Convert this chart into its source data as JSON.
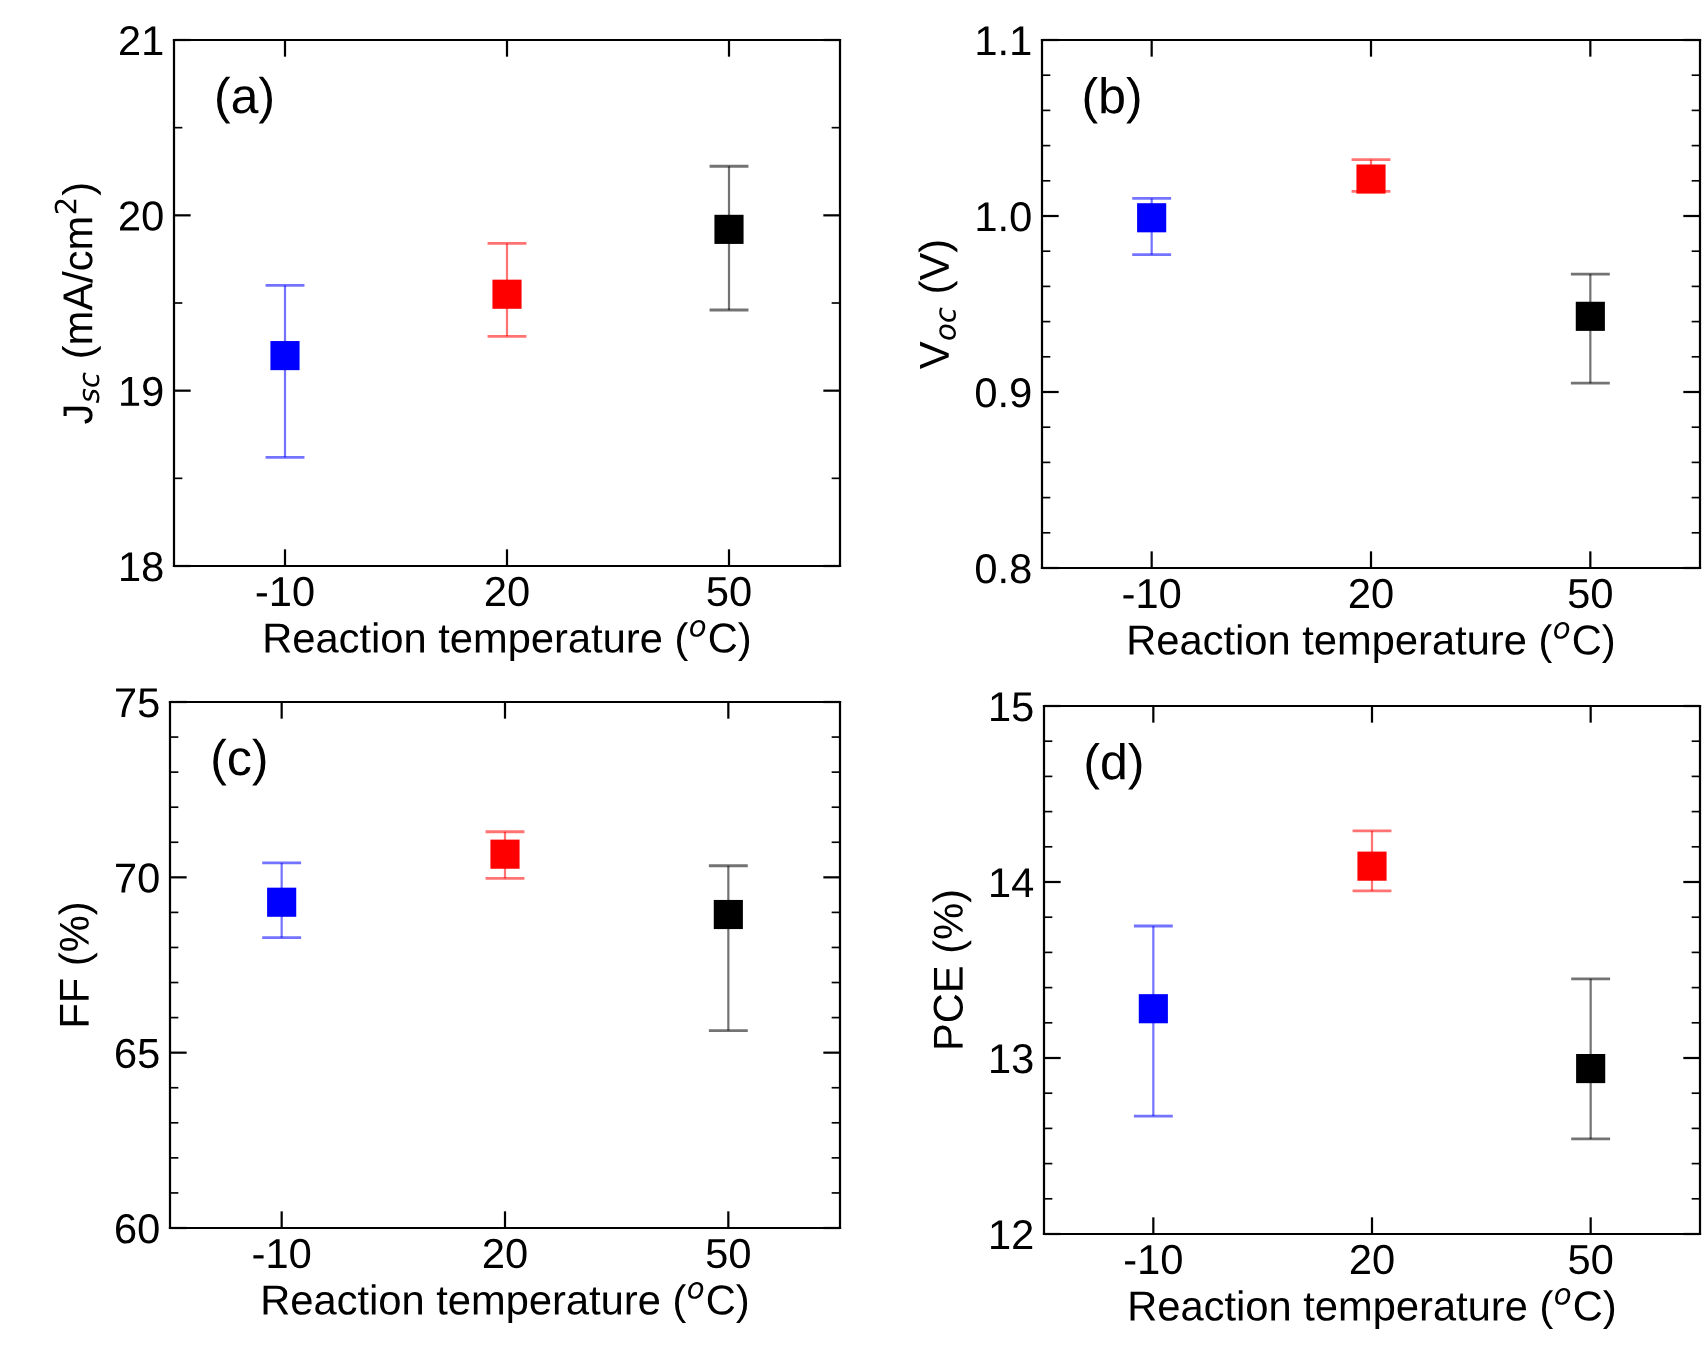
{
  "chart_data": [
    {
      "type": "scatter",
      "annotations": [
        "(a)"
      ],
      "xlabel": "Reaction temperature ($^{o}$C)",
      "ylabel": "J$_{sc}$ (mA/cm$^{2}$)",
      "categories": [
        "-10",
        "20",
        "50"
      ],
      "values": [
        19.2,
        19.55,
        19.92
      ],
      "colors": [
        "#0000ff",
        "#ff0000",
        "#000000"
      ],
      "errors": [
        [
          18.62,
          19.6
        ],
        [
          19.31,
          19.84
        ],
        [
          19.46,
          20.28
        ]
      ],
      "marker": "square",
      "ylim": [
        18,
        21
      ],
      "yticks": [
        18,
        {
          "value": 18.5,
          "label": null
        },
        19,
        {
          "value": 19.5,
          "label": null
        },
        20,
        {
          "value": 20.5,
          "label": null
        },
        21
      ]
    },
    {
      "type": "scatter",
      "annotations": [
        "(b)"
      ],
      "xlabel": "Reaction temperature ($^{o}$C)",
      "ylabel": "V$_{oc}$ (V)",
      "categories": [
        "-10",
        "20",
        "50"
      ],
      "values": [
        0.999,
        1.021,
        0.943
      ],
      "colors": [
        "#0000ff",
        "#ff0000",
        "#000000"
      ],
      "errors": [
        [
          0.978,
          1.01
        ],
        [
          1.014,
          1.032
        ],
        [
          0.905,
          0.967
        ]
      ],
      "marker": "square",
      "ylim": [
        0.8,
        1.1
      ],
      "yticks": [
        {
          "value": 0.8,
          "label": "0.8"
        },
        {
          "value": 0.82,
          "label": null
        },
        {
          "value": 0.84,
          "label": null
        },
        {
          "value": 0.86,
          "label": null
        },
        {
          "value": 0.88,
          "label": null
        },
        {
          "value": 0.9,
          "label": "0.9"
        },
        {
          "value": 0.92,
          "label": null
        },
        {
          "value": 0.94,
          "label": null
        },
        {
          "value": 0.96,
          "label": null
        },
        {
          "value": 0.98,
          "label": null
        },
        {
          "value": 1.0,
          "label": "1.0"
        },
        {
          "value": 1.02,
          "label": null
        },
        {
          "value": 1.04,
          "label": null
        },
        {
          "value": 1.06,
          "label": null
        },
        {
          "value": 1.08,
          "label": null
        },
        {
          "value": 1.1,
          "label": "1.1"
        }
      ]
    },
    {
      "type": "scatter",
      "annotations": [
        "(c)"
      ],
      "xlabel": "Reaction temperature ($^{o}$C)",
      "ylabel": "FF (%)",
      "categories": [
        "-10",
        "20",
        "50"
      ],
      "values": [
        69.29,
        70.66,
        68.94
      ],
      "colors": [
        "#0000ff",
        "#ff0000",
        "#000000"
      ],
      "errors": [
        [
          68.28,
          70.41
        ],
        [
          69.97,
          71.3
        ],
        [
          65.63,
          70.33
        ]
      ],
      "marker": "square",
      "ylim": [
        60,
        75
      ],
      "yticks": [
        60,
        {
          "value": 61,
          "label": null
        },
        {
          "value": 62,
          "label": null
        },
        {
          "value": 63,
          "label": null
        },
        {
          "value": 64,
          "label": null
        },
        65,
        {
          "value": 66,
          "label": null
        },
        {
          "value": 67,
          "label": null
        },
        {
          "value": 68,
          "label": null
        },
        {
          "value": 69,
          "label": null
        },
        70,
        {
          "value": 71,
          "label": null
        },
        {
          "value": 72,
          "label": null
        },
        {
          "value": 73,
          "label": null
        },
        {
          "value": 74,
          "label": null
        },
        75
      ]
    },
    {
      "type": "scatter",
      "annotations": [
        "(d)"
      ],
      "xlabel": "Reaction temperature ($^{o}$C)",
      "ylabel": "PCE (%)",
      "categories": [
        "-10",
        "20",
        "50"
      ],
      "values": [
        13.28,
        14.09,
        12.94
      ],
      "colors": [
        "#0000ff",
        "#ff0000",
        "#000000"
      ],
      "errors": [
        [
          12.67,
          13.75
        ],
        [
          13.95,
          14.29
        ],
        [
          12.54,
          13.45
        ]
      ],
      "marker": "square",
      "ylim": [
        12,
        15
      ],
      "yticks": [
        12,
        {
          "value": 12.2,
          "label": null
        },
        {
          "value": 12.4,
          "label": null
        },
        {
          "value": 12.6,
          "label": null
        },
        {
          "value": 12.8,
          "label": null
        },
        13,
        {
          "value": 13.2,
          "label": null
        },
        {
          "value": 13.4,
          "label": null
        },
        {
          "value": 13.6,
          "label": null
        },
        {
          "value": 13.8,
          "label": null
        },
        14,
        {
          "value": 14.2,
          "label": null
        },
        {
          "value": 14.4,
          "label": null
        },
        {
          "value": 14.6,
          "label": null
        },
        {
          "value": 14.8,
          "label": null
        },
        15
      ]
    }
  ]
}
